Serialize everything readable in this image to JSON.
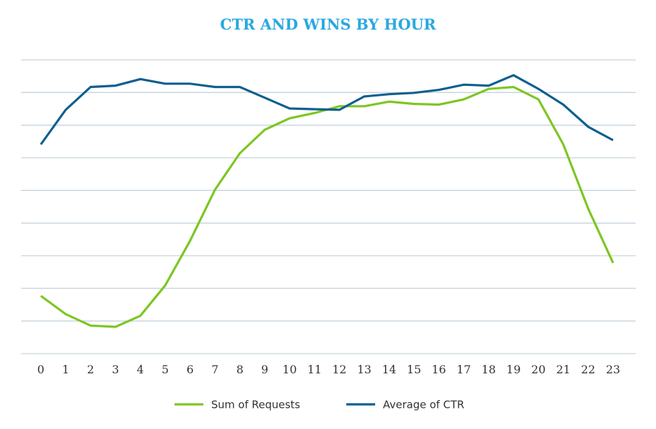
{
  "chart_data": {
    "type": "line",
    "title": "CTR AND WINS BY HOUR",
    "xlabel": "",
    "ylabel": "",
    "categories": [
      "0",
      "1",
      "2",
      "3",
      "4",
      "5",
      "6",
      "7",
      "8",
      "9",
      "10",
      "11",
      "12",
      "13",
      "14",
      "15",
      "16",
      "17",
      "18",
      "19",
      "20",
      "21",
      "22",
      "23"
    ],
    "ylim": [
      0,
      9
    ],
    "gridlines": 10,
    "grid": true,
    "y_ticks_visible": false,
    "legend_position": "bottom",
    "series": [
      {
        "name": "Sum of Requests",
        "color": "#7dc623",
        "values": [
          1.77,
          1.21,
          0.86,
          0.82,
          1.16,
          2.09,
          3.46,
          5.02,
          6.14,
          6.86,
          7.21,
          7.37,
          7.58,
          7.58,
          7.72,
          7.65,
          7.63,
          7.79,
          8.11,
          8.17,
          7.79,
          6.41,
          4.44,
          2.78
        ]
      },
      {
        "name": "Average of CTR",
        "color": "#0f5f8f",
        "values": [
          6.41,
          7.47,
          8.17,
          8.21,
          8.41,
          8.27,
          8.27,
          8.17,
          8.17,
          7.84,
          7.51,
          7.49,
          7.47,
          7.88,
          7.95,
          7.99,
          8.08,
          8.24,
          8.21,
          8.53,
          8.11,
          7.63,
          6.95,
          6.54
        ]
      }
    ]
  }
}
